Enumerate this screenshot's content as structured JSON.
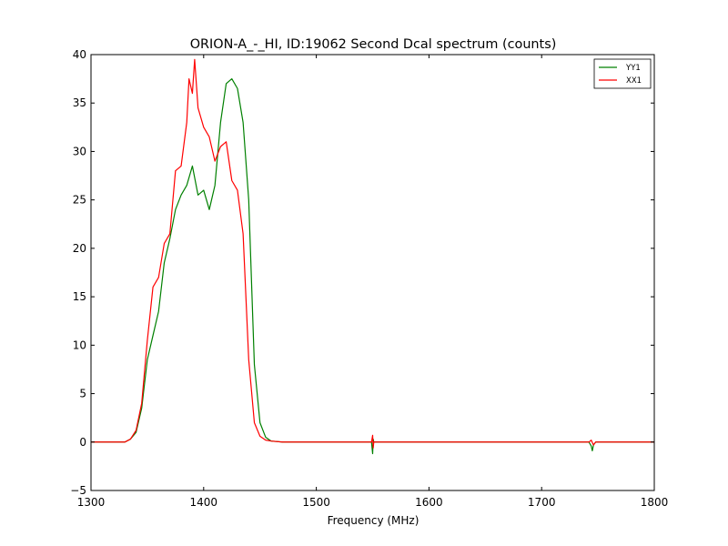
{
  "chart_data": {
    "type": "line",
    "title": "ORION-A_-_HI, ID:19062 Second Dcal spectrum (counts)",
    "xlabel": "Frequency (MHz)",
    "ylabel": "",
    "xlim": [
      1300,
      1800
    ],
    "ylim": [
      -5,
      40
    ],
    "xticks": [
      1300,
      1400,
      1500,
      1600,
      1700,
      1800
    ],
    "yticks": [
      -5,
      0,
      5,
      10,
      15,
      20,
      25,
      30,
      35,
      40
    ],
    "xtick_labels": [
      "1300",
      "1400",
      "1500",
      "1600",
      "1700",
      "1800"
    ],
    "ytick_labels": [
      "−5",
      "0",
      "5",
      "10",
      "15",
      "20",
      "25",
      "30",
      "35",
      "40"
    ],
    "grid": false,
    "legend_position": "top-right",
    "series": [
      {
        "name": "YY1",
        "color": "#008000",
        "x": [
          1300,
          1330,
          1335,
          1340,
          1345,
          1350,
          1355,
          1360,
          1365,
          1370,
          1375,
          1380,
          1385,
          1390,
          1395,
          1400,
          1405,
          1410,
          1415,
          1420,
          1425,
          1430,
          1435,
          1440,
          1445,
          1450,
          1455,
          1460,
          1470,
          1500,
          1549,
          1550,
          1550.5,
          1551,
          1552,
          1600,
          1700,
          1742,
          1744,
          1745,
          1746,
          1748,
          1800
        ],
        "y": [
          0,
          0,
          0.3,
          1.0,
          3.5,
          8.5,
          11.0,
          13.5,
          18.5,
          21.0,
          24.0,
          25.5,
          26.5,
          28.5,
          25.5,
          26.0,
          24.0,
          26.5,
          33.0,
          37.0,
          37.5,
          36.5,
          33.0,
          25.0,
          8.0,
          2.0,
          0.5,
          0.1,
          0,
          0,
          0,
          -1.2,
          0.3,
          0,
          0,
          0,
          0,
          0,
          -0.4,
          -0.9,
          -0.3,
          0,
          0
        ]
      },
      {
        "name": "XX1",
        "color": "#ff0000",
        "x": [
          1300,
          1330,
          1335,
          1340,
          1345,
          1350,
          1355,
          1360,
          1365,
          1370,
          1375,
          1380,
          1385,
          1387,
          1390,
          1392,
          1395,
          1400,
          1405,
          1410,
          1415,
          1420,
          1425,
          1430,
          1435,
          1440,
          1445,
          1450,
          1455,
          1460,
          1470,
          1500,
          1549,
          1550,
          1550.5,
          1551,
          1552,
          1600,
          1700,
          1742,
          1744,
          1746,
          1748,
          1800
        ],
        "y": [
          0,
          0,
          0.3,
          1.2,
          4.0,
          10.5,
          16.0,
          17.0,
          20.5,
          21.5,
          28.0,
          28.5,
          33.0,
          37.5,
          36.0,
          39.5,
          34.5,
          32.5,
          31.5,
          29.0,
          30.5,
          31.0,
          27.0,
          26.0,
          21.5,
          8.5,
          2.0,
          0.6,
          0.2,
          0.1,
          0,
          0,
          0,
          0.7,
          -0.6,
          0,
          0,
          0,
          0,
          0,
          0.2,
          -0.3,
          0,
          0
        ]
      }
    ]
  }
}
